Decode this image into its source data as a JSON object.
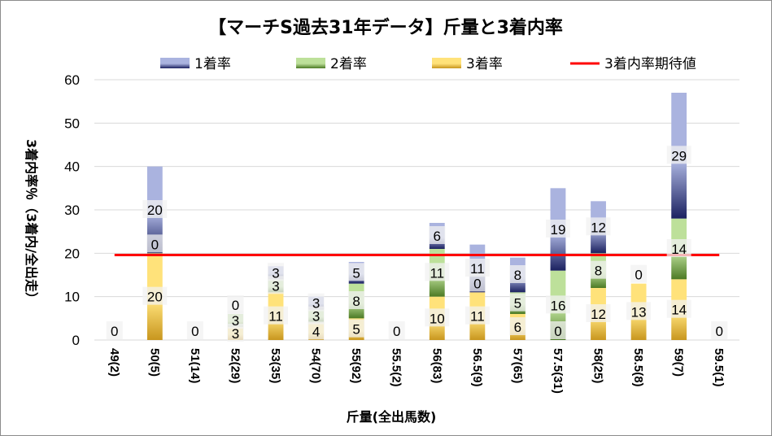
{
  "chart_data": {
    "type": "bar",
    "stacked": true,
    "title": "【マーチS過去31年データ】斤量と3着内率",
    "xlabel": "斤量(全出馬数)",
    "ylabel": "3着内率％（3着内/全出走）",
    "ylim": [
      0,
      60
    ],
    "yticks": [
      0,
      10,
      20,
      30,
      40,
      50,
      60
    ],
    "grid": true,
    "legend_position": "top",
    "categories": [
      "49(2)",
      "50(5)",
      "51(14)",
      "52(29)",
      "53(35)",
      "54(70)",
      "55(92)",
      "55.5(2)",
      "56(83)",
      "56.5(9)",
      "57(65)",
      "57.5(31)",
      "58(25)",
      "58.5(8)",
      "59(7)",
      "59.5(1)"
    ],
    "series": [
      {
        "name": "3着率",
        "colors": [
          "#c8961e",
          "#ffe27a"
        ],
        "values": [
          0,
          20,
          0,
          3,
          11,
          4,
          5,
          0,
          10,
          11,
          6,
          0,
          12,
          13,
          14,
          0
        ]
      },
      {
        "name": "2着率",
        "colors": [
          "#4c7a24",
          "#bde09a"
        ],
        "values": [
          0,
          0,
          0,
          3,
          3,
          3,
          8,
          0,
          11,
          0,
          5,
          16,
          8,
          0,
          14,
          0
        ]
      },
      {
        "name": "1着率",
        "colors": [
          "#1b2160",
          "#aab3df"
        ],
        "values": [
          0,
          20,
          0,
          0,
          3,
          3,
          5,
          0,
          6,
          11,
          8,
          19,
          12,
          0,
          29,
          0
        ]
      }
    ],
    "data_labels": [
      [
        "0",
        "20",
        "0",
        "3",
        "11",
        "4",
        "5",
        "0",
        "10",
        "11",
        "6",
        "0",
        "12",
        "13",
        "14",
        "0"
      ],
      [
        "",
        "0",
        "",
        "3",
        "3",
        "3",
        "8",
        "",
        "11",
        "0",
        "5",
        "16",
        "8",
        "0",
        "14",
        ""
      ],
      [
        "",
        "20",
        "",
        "0",
        "3",
        "3",
        "5",
        "",
        "6",
        "11",
        "8",
        "19",
        "12",
        "",
        "29",
        ""
      ]
    ],
    "expectation_line": {
      "name": "3着内率期待値",
      "value": 19.6,
      "color": "#ff0000"
    }
  }
}
